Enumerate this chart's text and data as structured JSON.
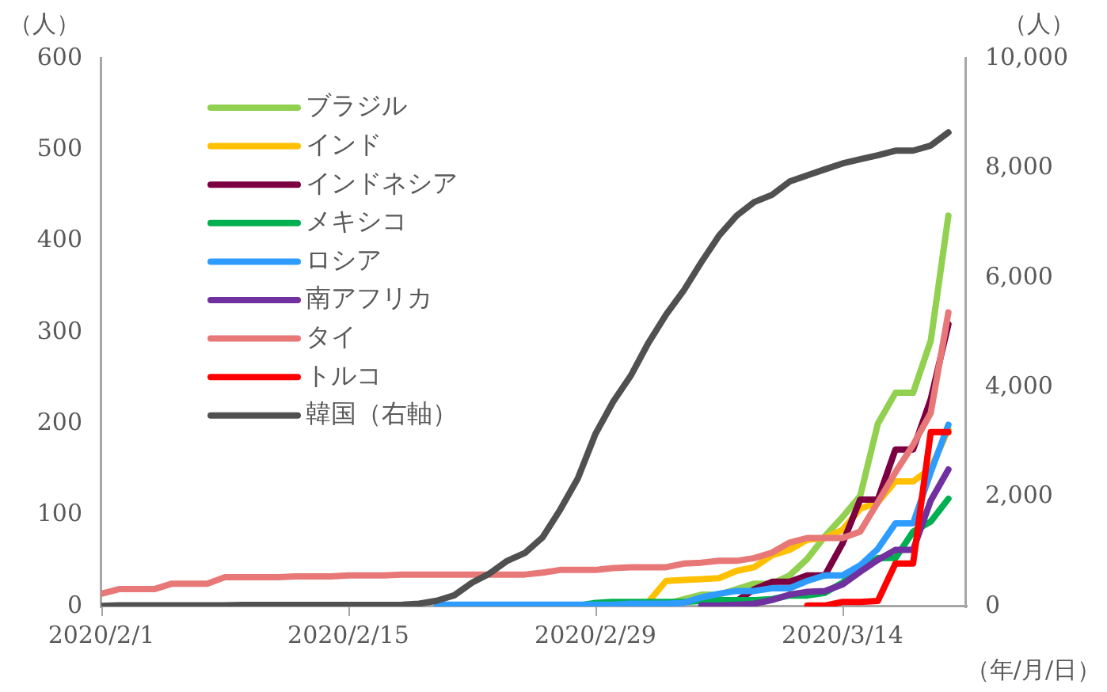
{
  "chart_data": {
    "type": "line",
    "xlabel": "（年/月/日）",
    "ylabel": "（人）",
    "y2label": "（人）",
    "x": [
      "2020-02-01",
      "2020-02-02",
      "2020-02-03",
      "2020-02-04",
      "2020-02-05",
      "2020-02-06",
      "2020-02-07",
      "2020-02-08",
      "2020-02-09",
      "2020-02-10",
      "2020-02-11",
      "2020-02-12",
      "2020-02-13",
      "2020-02-14",
      "2020-02-15",
      "2020-02-16",
      "2020-02-17",
      "2020-02-18",
      "2020-02-19",
      "2020-02-20",
      "2020-02-21",
      "2020-02-22",
      "2020-02-23",
      "2020-02-24",
      "2020-02-25",
      "2020-02-26",
      "2020-02-27",
      "2020-02-28",
      "2020-02-29",
      "2020-03-01",
      "2020-03-02",
      "2020-03-03",
      "2020-03-04",
      "2020-03-05",
      "2020-03-06",
      "2020-03-07",
      "2020-03-08",
      "2020-03-09",
      "2020-03-10",
      "2020-03-11",
      "2020-03-12",
      "2020-03-13",
      "2020-03-14",
      "2020-03-15",
      "2020-03-16",
      "2020-03-17",
      "2020-03-18",
      "2020-03-19",
      "2020-03-20"
    ],
    "xlim": [
      "2020-02-01",
      "2020-03-21"
    ],
    "xticks": [
      {
        "value": "2020-02-01",
        "label": "2020/2/1"
      },
      {
        "value": "2020-02-15",
        "label": "2020/2/15"
      },
      {
        "value": "2020-02-29",
        "label": "2020/2/29"
      },
      {
        "value": "2020-03-14",
        "label": "2020/3/14"
      }
    ],
    "ylim": [
      0,
      600
    ],
    "yticks": [
      0,
      100,
      200,
      300,
      400,
      500,
      600
    ],
    "y2lim": [
      0,
      10000
    ],
    "y2ticks": [
      0,
      {
        "value": 2000,
        "label": "2,000"
      },
      {
        "value": 4000,
        "label": "4,000"
      },
      {
        "value": 6000,
        "label": "6,000"
      },
      {
        "value": 8000,
        "label": "8,000"
      },
      {
        "value": 10000,
        "label": "10,000"
      }
    ],
    "grid": false,
    "legend": "top left",
    "marker": "none",
    "line_style": "solid",
    "series": [
      {
        "name": "ブラジル",
        "color": "#92d050",
        "values": [
          null,
          null,
          null,
          null,
          null,
          null,
          null,
          null,
          null,
          null,
          null,
          null,
          null,
          null,
          null,
          null,
          null,
          null,
          null,
          null,
          null,
          null,
          null,
          null,
          null,
          null,
          null,
          null,
          null,
          null,
          null,
          null,
          3,
          8,
          13,
          13,
          19,
          25,
          25,
          34,
          52,
          77,
          98,
          121,
          200,
          234,
          234,
          291,
          428
        ]
      },
      {
        "name": "インド",
        "color": "#ffc000",
        "values": [
          null,
          null,
          null,
          null,
          null,
          null,
          null,
          null,
          null,
          null,
          null,
          null,
          null,
          null,
          null,
          null,
          null,
          null,
          null,
          null,
          null,
          null,
          null,
          null,
          null,
          null,
          null,
          null,
          null,
          null,
          null,
          5,
          28,
          29,
          30,
          31,
          39,
          43,
          56,
          62,
          73,
          75,
          84,
          107,
          114,
          137,
          137,
          151,
          194
        ]
      },
      {
        "name": "インドネシア",
        "color": "#7b0041",
        "values": [
          null,
          null,
          null,
          null,
          null,
          null,
          null,
          null,
          null,
          null,
          null,
          null,
          null,
          null,
          null,
          null,
          null,
          null,
          null,
          null,
          null,
          null,
          null,
          null,
          null,
          null,
          null,
          null,
          null,
          null,
          null,
          null,
          null,
          null,
          null,
          4,
          6,
          19,
          27,
          27,
          34,
          34,
          69,
          117,
          117,
          172,
          172,
          227,
          309
        ]
      },
      {
        "name": "メキシコ",
        "color": "#00b050",
        "values": [
          null,
          null,
          null,
          null,
          null,
          null,
          null,
          null,
          null,
          null,
          null,
          null,
          null,
          null,
          null,
          null,
          null,
          null,
          null,
          null,
          null,
          null,
          null,
          null,
          null,
          null,
          null,
          1,
          4,
          5,
          5,
          5,
          5,
          5,
          6,
          7,
          7,
          7,
          8,
          12,
          12,
          15,
          26,
          41,
          53,
          53,
          82,
          93,
          118
        ]
      },
      {
        "name": "ロシア",
        "color": "#2e9cff",
        "values": [
          null,
          null,
          null,
          null,
          null,
          null,
          null,
          null,
          null,
          null,
          null,
          null,
          null,
          null,
          null,
          null,
          null,
          null,
          null,
          2,
          2,
          2,
          2,
          2,
          2,
          2,
          2,
          2,
          2,
          2,
          3,
          3,
          3,
          4,
          10,
          14,
          17,
          17,
          20,
          20,
          28,
          34,
          34,
          45,
          63,
          91,
          91,
          147,
          199
        ]
      },
      {
        "name": "南アフリカ",
        "color": "#7030a0",
        "values": [
          null,
          null,
          null,
          null,
          null,
          null,
          null,
          null,
          null,
          null,
          null,
          null,
          null,
          null,
          null,
          null,
          null,
          null,
          null,
          null,
          null,
          null,
          null,
          null,
          null,
          null,
          null,
          null,
          null,
          null,
          null,
          null,
          null,
          null,
          1,
          1,
          2,
          3,
          7,
          13,
          16,
          17,
          24,
          38,
          51,
          62,
          62,
          116,
          150
        ]
      },
      {
        "name": "タイ",
        "color": "#e87878",
        "values": [
          14,
          19,
          19,
          19,
          25,
          25,
          25,
          32,
          32,
          32,
          32,
          33,
          33,
          33,
          34,
          34,
          34,
          35,
          35,
          35,
          35,
          35,
          35,
          35,
          35,
          37,
          40,
          40,
          40,
          42,
          43,
          43,
          43,
          47,
          48,
          50,
          50,
          53,
          59,
          70,
          75,
          75,
          75,
          82,
          114,
          147,
          177,
          212,
          322
        ]
      },
      {
        "name": "トルコ",
        "color": "#ff0000",
        "values": [
          null,
          null,
          null,
          null,
          null,
          null,
          null,
          null,
          null,
          null,
          null,
          null,
          null,
          null,
          null,
          null,
          null,
          null,
          null,
          null,
          null,
          null,
          null,
          null,
          null,
          null,
          null,
          null,
          null,
          null,
          null,
          null,
          null,
          null,
          null,
          null,
          null,
          null,
          null,
          null,
          1,
          1,
          5,
          5,
          6,
          47,
          47,
          191,
          191
        ]
      },
      {
        "name": "韓国（右軸）",
        "color": "#505050",
        "axis": "y2",
        "values": [
          10,
          20,
          20,
          20,
          20,
          20,
          20,
          20,
          30,
          30,
          30,
          30,
          30,
          30,
          30,
          30,
          30,
          30,
          50,
          104,
          204,
          433,
          602,
          833,
          977,
          1261,
          1766,
          2337,
          3150,
          3736,
          4212,
          4812,
          5328,
          5766,
          6284,
          6767,
          7134,
          7382,
          7513,
          7755,
          7869,
          7979,
          8086,
          8162,
          8236,
          8320,
          8320,
          8413,
          8652
        ]
      }
    ]
  }
}
